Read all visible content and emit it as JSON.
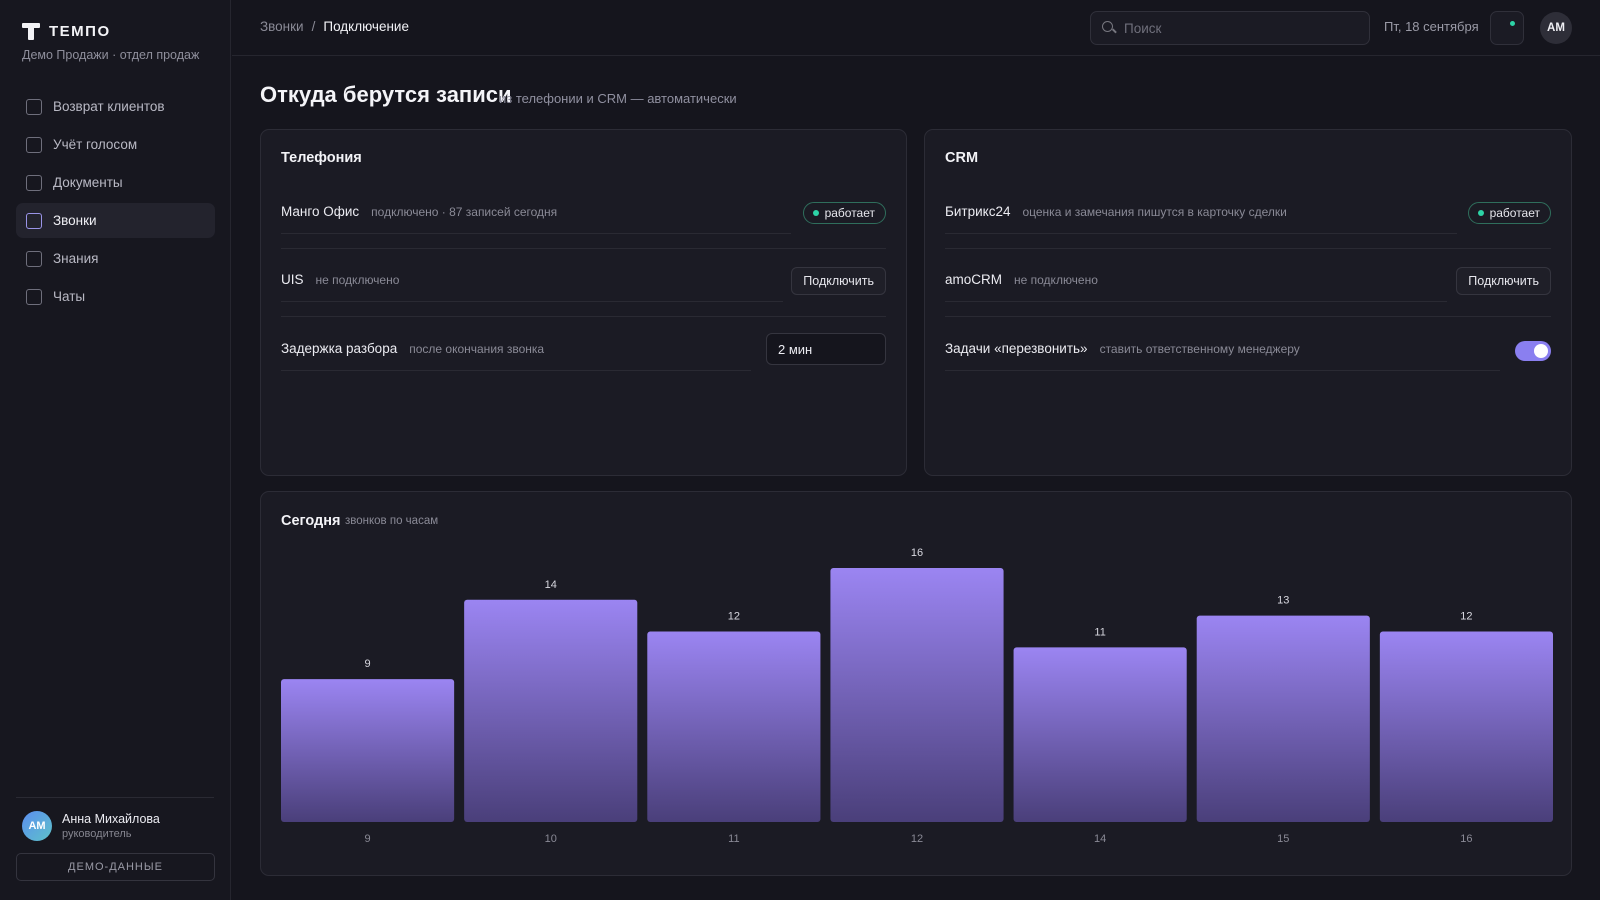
{
  "brand": {
    "name": "ТЕМПО",
    "subtitle": "Демо Продажи · отдел продаж"
  },
  "sidebar": {
    "items": [
      {
        "label": "Возврат клиентов",
        "active": false
      },
      {
        "label": "Учёт голосом",
        "active": false
      },
      {
        "label": "Документы",
        "active": false
      },
      {
        "label": "Звонки",
        "active": true
      },
      {
        "label": "Знания",
        "active": false
      },
      {
        "label": "Чаты",
        "active": false
      }
    ],
    "user": {
      "initials": "АМ",
      "name": "Анна Михайлова",
      "role": "руководитель"
    },
    "demo_button": "ДЕМО-ДАННЫЕ"
  },
  "topbar": {
    "breadcrumb": [
      "Звонки",
      "Подключение"
    ],
    "breadcrumb_sep": "/",
    "search_placeholder": "Поиск",
    "date": "Пт, 18 сентября",
    "avatar": "АМ"
  },
  "page": {
    "title": "Откуда берутся записи",
    "subtitle": "из телефонии и CRM — автоматически"
  },
  "telephony": {
    "title": "Телефония",
    "rows": [
      {
        "name": "Манго Офис",
        "desc": "подключено · 87 записей сегодня",
        "status": "работает"
      },
      {
        "name": "UIS",
        "desc": "не подключено",
        "action": "Подключить"
      },
      {
        "name": "Задержка разбора",
        "desc": "после окончания звонка",
        "value": "2 мин"
      }
    ]
  },
  "crm": {
    "title": "CRM",
    "rows": [
      {
        "name": "Битрикс24",
        "desc": "оценка и замечания пишутся в карточку сделки",
        "status": "работает"
      },
      {
        "name": "amoCRM",
        "desc": "не подключено",
        "action": "Подключить"
      },
      {
        "name": "Задачи «перезвонить»",
        "desc": "ставить ответственному менеджеру",
        "toggle": true
      }
    ]
  },
  "chart": {
    "title": "Сегодня",
    "subtitle": "звонков по часам"
  },
  "chart_data": {
    "type": "bar",
    "categories": [
      "9",
      "10",
      "11",
      "12",
      "14",
      "15",
      "16"
    ],
    "values": [
      9,
      14,
      12,
      16,
      11,
      13,
      12
    ],
    "title": "Сегодня",
    "subtitle": "звонков по часам",
    "xlabel": "",
    "ylabel": "",
    "ylim": [
      0,
      16
    ],
    "grid": false,
    "colors": {
      "bar_top": "#9b85f2",
      "bar_bottom": "#4a3f7a"
    }
  },
  "colors": {
    "accent": "#8a7ff0",
    "status_ok": "#2dd4a7",
    "background": "#15151d",
    "card": "#1b1b24"
  }
}
